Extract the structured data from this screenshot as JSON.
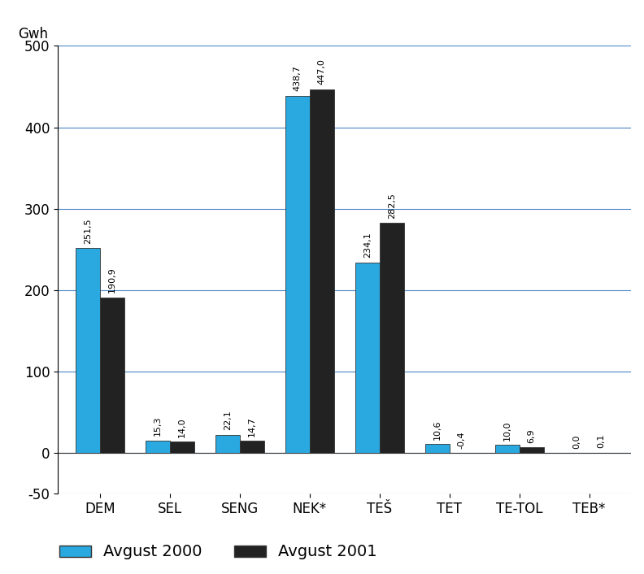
{
  "chart_data": {
    "type": "bar",
    "y_label": "Gwh",
    "categories": [
      "DEM",
      "SEL",
      "SENG",
      "NEK*",
      "TEŠ",
      "TET",
      "TE-TOL",
      "TEB*"
    ],
    "series": [
      {
        "name": "Avgust 2000",
        "color": "#2aa8e0",
        "values": [
          251.5,
          15.3,
          22.1,
          438.7,
          234.1,
          10.6,
          10.0,
          0.0
        ],
        "value_labels": [
          "251,5",
          "15,3",
          "22,1",
          "438,7",
          "234,1",
          "10,6",
          "10,0",
          "0,0"
        ]
      },
      {
        "name": "Avgust 2001",
        "color": "#222222",
        "values": [
          190.9,
          14.0,
          14.7,
          447.0,
          282.5,
          -0.4,
          6.9,
          0.1
        ],
        "value_labels": [
          "190,9",
          "14,0",
          "14,7",
          "447,0",
          "282,5",
          "-0,4",
          "6,9",
          "0,1"
        ]
      }
    ],
    "ylim": [
      -50,
      500
    ],
    "yticks": [
      -50,
      0,
      100,
      200,
      300,
      400,
      500
    ],
    "grid": true,
    "data_labels": true,
    "legend": "lower left"
  }
}
